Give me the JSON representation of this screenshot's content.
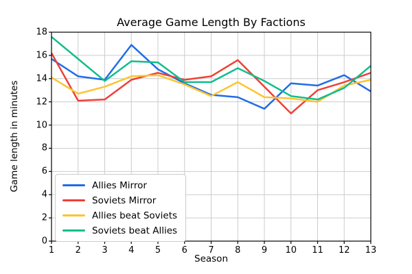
{
  "chart_data": {
    "type": "line",
    "title": "Average Game Length By Factions",
    "xlabel": "Season",
    "ylabel": "Game length in minutes",
    "x": [
      1,
      2,
      3,
      4,
      5,
      6,
      7,
      8,
      9,
      10,
      11,
      12,
      13
    ],
    "xlim": [
      1,
      13
    ],
    "ylim": [
      0,
      18
    ],
    "y_ticks": [
      0,
      2,
      4,
      6,
      8,
      10,
      12,
      14,
      16,
      18
    ],
    "grid": true,
    "grid_color": "#cccccc",
    "spine_color": "#000000",
    "legend_position": "lower left",
    "series": [
      {
        "name": "Allies Mirror",
        "color": "#1f6ce8",
        "values": [
          15.7,
          14.2,
          13.9,
          16.9,
          14.8,
          13.6,
          12.6,
          12.4,
          11.4,
          13.6,
          13.4,
          14.3,
          12.9
        ]
      },
      {
        "name": "Soviets Mirror",
        "color": "#ee4037",
        "values": [
          16.2,
          12.1,
          12.2,
          13.9,
          14.5,
          13.9,
          14.2,
          15.6,
          13.3,
          11.0,
          13.0,
          13.7,
          14.5
        ]
      },
      {
        "name": "Allies beat Soviets",
        "color": "#fdc42f",
        "values": [
          14.1,
          12.7,
          13.3,
          14.2,
          14.3,
          13.5,
          12.5,
          13.7,
          12.4,
          12.3,
          12.0,
          13.4,
          13.9
        ]
      },
      {
        "name": "Soviets beat Allies",
        "color": "#12bd8b",
        "values": [
          17.6,
          15.7,
          13.8,
          15.5,
          15.4,
          13.7,
          13.7,
          14.9,
          13.8,
          12.5,
          12.2,
          13.2,
          15.1
        ]
      }
    ]
  }
}
